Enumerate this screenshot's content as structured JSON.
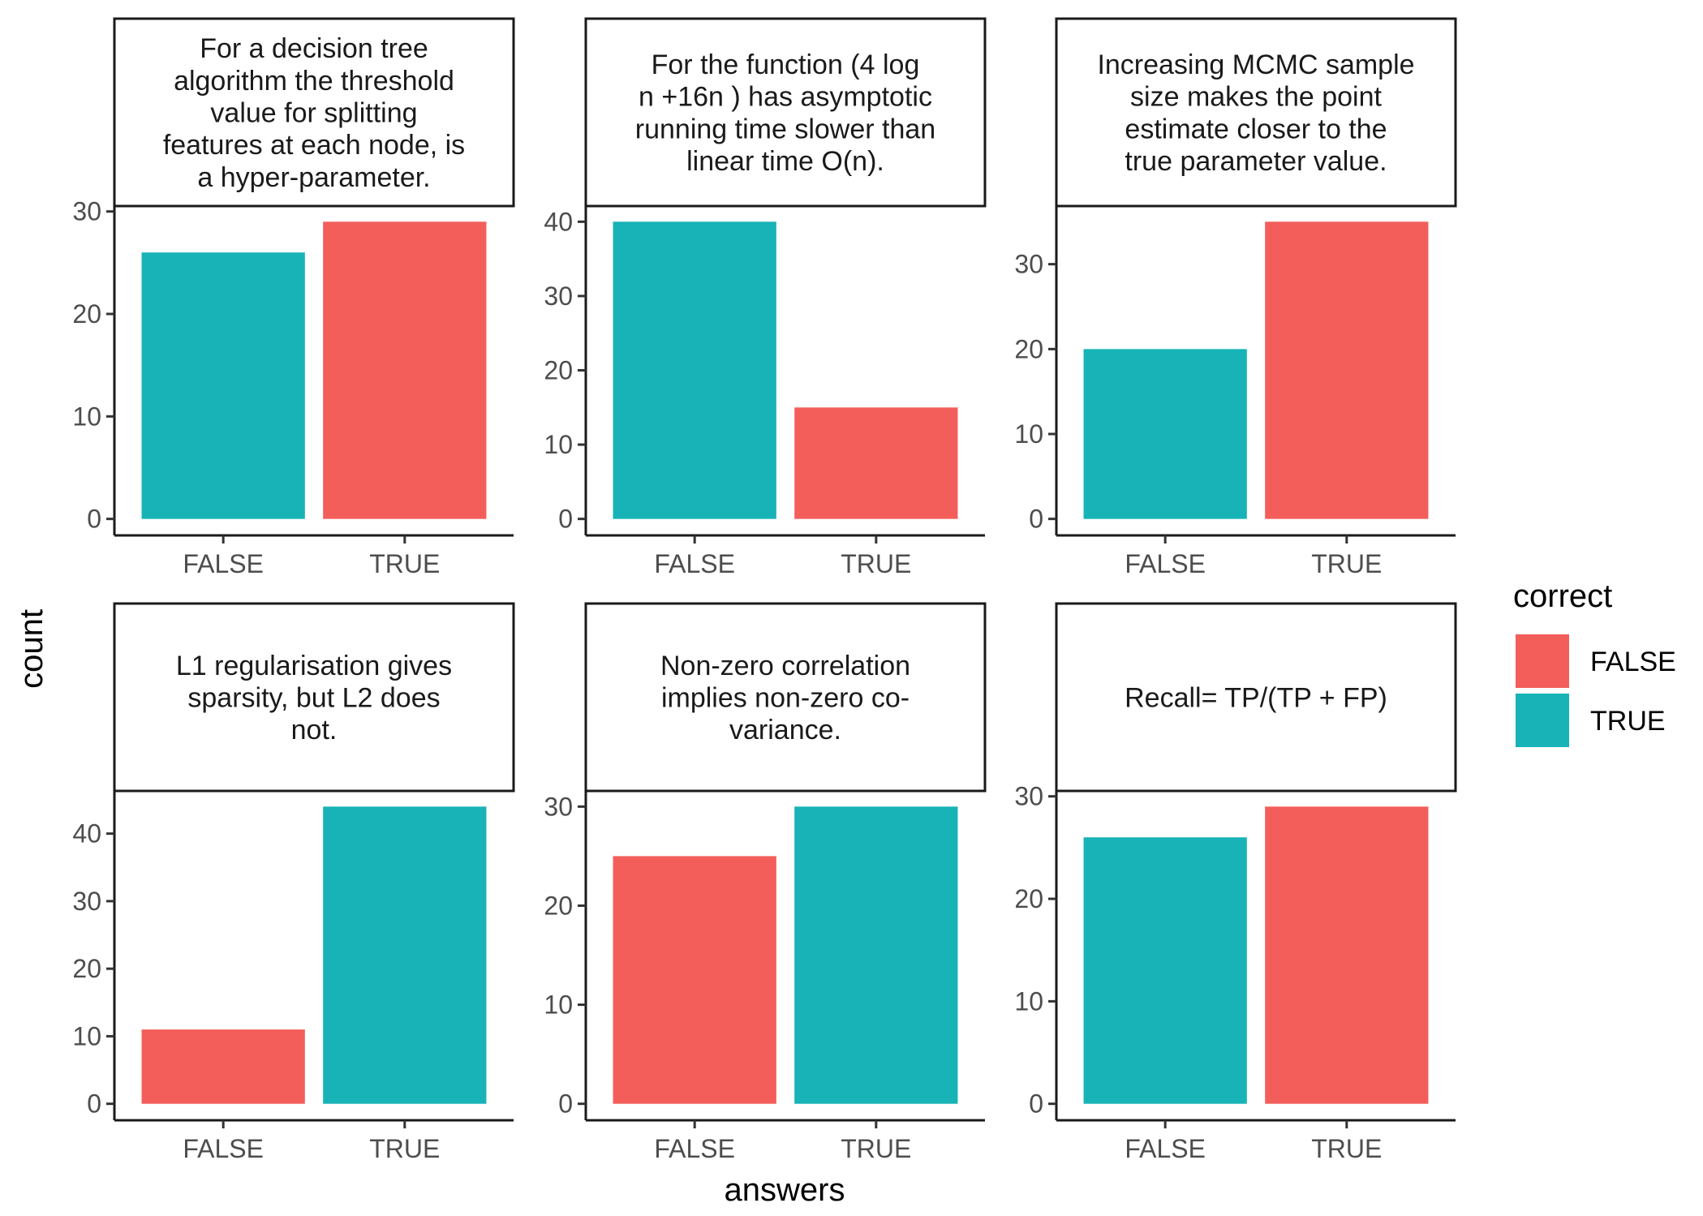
{
  "chart_data": {
    "type": "bar",
    "xlabel": "answers",
    "ylabel": "count",
    "legend": {
      "title": "correct",
      "placement": "right",
      "entries": [
        {
          "label": "FALSE",
          "color": "#F35E5A"
        },
        {
          "label": "TRUE",
          "color": "#17B3B7"
        }
      ]
    },
    "categories": [
      "FALSE",
      "TRUE"
    ],
    "facets": [
      {
        "title": "For a decision tree algorithm the threshold value for splitting features at each node, is a hyper-parameter.",
        "title_lines": [
          "For a decision tree",
          "algorithm the threshold",
          "value for splitting",
          "features at each node, is",
          "a hyper-parameter."
        ],
        "values": [
          26,
          29
        ],
        "correct": [
          "TRUE",
          "FALSE"
        ],
        "yticks": [
          0,
          10,
          20,
          30
        ]
      },
      {
        "title": "For the function (4 log n +16n ) has asymptotic running time slower than linear time O(n).",
        "title_lines": [
          "For the function (4 log",
          "n +16n ) has asymptotic",
          "running time slower than",
          "linear time O(n)."
        ],
        "values": [
          40,
          15
        ],
        "correct": [
          "TRUE",
          "FALSE"
        ],
        "yticks": [
          0,
          10,
          20,
          30,
          40
        ]
      },
      {
        "title": "Increasing MCMC sample size makes the point estimate closer to the true parameter value.",
        "title_lines": [
          "Increasing MCMC sample",
          "size makes the point",
          "estimate closer to the",
          "true parameter value."
        ],
        "values": [
          20,
          35
        ],
        "correct": [
          "TRUE",
          "FALSE"
        ],
        "yticks": [
          0,
          10,
          20,
          30
        ]
      },
      {
        "title": "L1 regularisation gives sparsity, but L2 does not.",
        "title_lines": [
          "L1 regularisation gives",
          "sparsity, but L2 does",
          "not."
        ],
        "values": [
          11,
          44
        ],
        "correct": [
          "FALSE",
          "TRUE"
        ],
        "yticks": [
          0,
          10,
          20,
          30,
          40
        ]
      },
      {
        "title": "Non-zero correlation implies non-zero co-variance.",
        "title_lines": [
          "Non-zero correlation",
          "implies non-zero co-",
          "variance."
        ],
        "values": [
          25,
          30
        ],
        "correct": [
          "FALSE",
          "TRUE"
        ],
        "yticks": [
          0,
          10,
          20,
          30
        ]
      },
      {
        "title": "Recall= TP/(TP + FP)",
        "title_lines": [
          "Recall= TP/(TP + FP)"
        ],
        "values": [
          26,
          29
        ],
        "correct": [
          "TRUE",
          "FALSE"
        ],
        "yticks": [
          0,
          10,
          20,
          30
        ]
      }
    ]
  }
}
